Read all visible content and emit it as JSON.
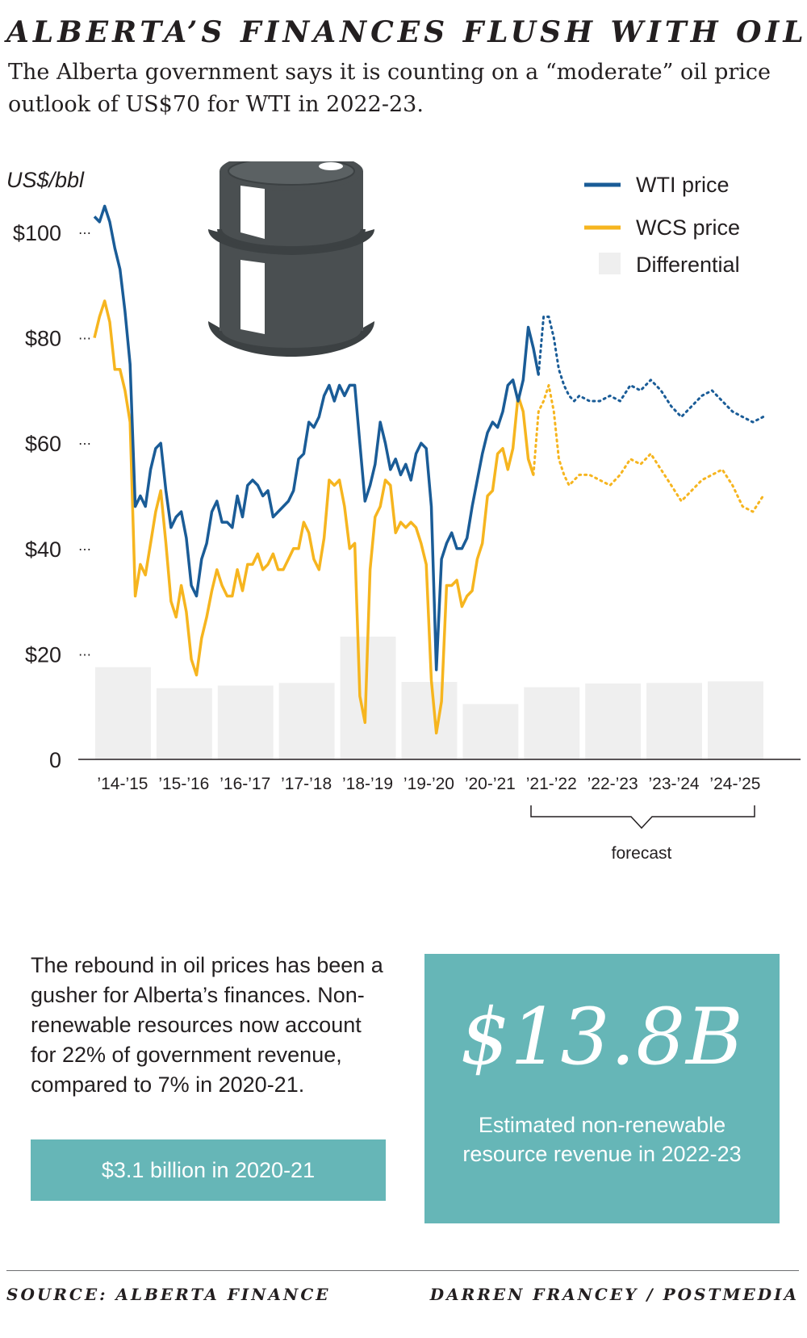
{
  "title": "ALBERTA’S FINANCES FLUSH WITH OIL",
  "subtitle": "The Alberta government says it is counting on a “moderate” oil price outlook of US$70 for WTI in 2022-23.",
  "icon": "oil-barrel-icon",
  "colors": {
    "wti": "#1a5c97",
    "wcs": "#f6b51f",
    "differential": "#efefef",
    "box": "#66b6b7",
    "barrel": "#4a4f51"
  },
  "chart_data": {
    "type": "line",
    "ylabel": "US$/bbl",
    "ylim": [
      0,
      100
    ],
    "yticks": [
      {
        "value": 100,
        "label": "$100"
      },
      {
        "value": 80,
        "label": "$80"
      },
      {
        "value": 60,
        "label": "$60"
      },
      {
        "value": 40,
        "label": "$40"
      },
      {
        "value": 20,
        "label": "$20"
      },
      {
        "value": 0,
        "label": "0"
      }
    ],
    "categories": [
      "’14-’15",
      "’15-’16",
      "’16-’17",
      "’17-’18",
      "’18-’19",
      "’19-’20",
      "’20-’21",
      "’21-’22",
      "’22-’23",
      "’23-’24",
      "’24-’25"
    ],
    "forecast_label": "forecast",
    "legend": [
      "WTI price",
      "WCS price",
      "Differential"
    ],
    "differential": [
      17.5,
      13.5,
      14,
      14.5,
      23.3,
      14.7,
      10.5,
      13.7,
      14.4,
      14.5,
      14.8
    ],
    "series": [
      {
        "name": "WTI price",
        "x": [
          0,
          0.083,
          0.167,
          0.25,
          0.333,
          0.417,
          0.5,
          0.583,
          0.667,
          0.75,
          0.833,
          0.917,
          1,
          1.083,
          1.167,
          1.25,
          1.333,
          1.417,
          1.5,
          1.583,
          1.667,
          1.75,
          1.833,
          1.917,
          2,
          2.083,
          2.167,
          2.25,
          2.333,
          2.417,
          2.5,
          2.583,
          2.667,
          2.75,
          2.833,
          2.917,
          3,
          3.083,
          3.167,
          3.25,
          3.333,
          3.417,
          3.5,
          3.583,
          3.667,
          3.75,
          3.833,
          3.917,
          4,
          4.083,
          4.167,
          4.25,
          4.333,
          4.417,
          4.5,
          4.583,
          4.667,
          4.75,
          4.833,
          4.917,
          5,
          5.083,
          5.167,
          5.25,
          5.333,
          5.417,
          5.5,
          5.583,
          5.667,
          5.75,
          5.833,
          5.917,
          6,
          6.083,
          6.167,
          6.25,
          6.333,
          6.417,
          6.5,
          6.583,
          6.667,
          6.75,
          6.833,
          6.917,
          7,
          7.083,
          7.167,
          7.25,
          7.333,
          7.417,
          7.5,
          7.583,
          7.667,
          7.75,
          7.833,
          7.917
        ],
        "values": [
          103,
          102,
          105,
          102,
          97,
          93,
          85,
          75,
          48,
          50,
          48,
          55,
          59,
          60,
          51,
          44,
          46,
          47,
          42,
          33,
          31,
          38,
          41,
          47,
          49,
          45,
          45,
          44,
          50,
          46,
          52,
          53,
          52,
          50,
          51,
          46,
          47,
          48,
          49,
          51,
          57,
          58,
          64,
          63,
          65,
          69,
          71,
          68,
          71,
          69,
          71,
          71,
          60,
          49,
          52,
          56,
          64,
          60,
          55,
          57,
          54,
          56,
          53,
          58,
          60,
          59,
          48,
          17,
          38,
          41,
          43,
          40,
          40,
          42,
          48,
          53,
          58,
          62,
          64,
          63,
          66,
          71,
          72,
          68,
          72,
          82,
          78,
          73,
          84,
          84,
          80,
          74,
          71,
          69,
          68,
          69
        ],
        "forecast_from_index": 88
      },
      {
        "name": "WCS price",
        "x": [
          0,
          0.083,
          0.167,
          0.25,
          0.333,
          0.417,
          0.5,
          0.583,
          0.667,
          0.75,
          0.833,
          0.917,
          1,
          1.083,
          1.167,
          1.25,
          1.333,
          1.417,
          1.5,
          1.583,
          1.667,
          1.75,
          1.833,
          1.917,
          2,
          2.083,
          2.167,
          2.25,
          2.333,
          2.417,
          2.5,
          2.583,
          2.667,
          2.75,
          2.833,
          2.917,
          3,
          3.083,
          3.167,
          3.25,
          3.333,
          3.417,
          3.5,
          3.583,
          3.667,
          3.75,
          3.833,
          3.917,
          4,
          4.083,
          4.167,
          4.25,
          4.333,
          4.417,
          4.5,
          4.583,
          4.667,
          4.75,
          4.833,
          4.917,
          5,
          5.083,
          5.167,
          5.25,
          5.333,
          5.417,
          5.5,
          5.583,
          5.667,
          5.75,
          5.833,
          5.917,
          6,
          6.083,
          6.167,
          6.25,
          6.333,
          6.417,
          6.5,
          6.583,
          6.667,
          6.75,
          6.833,
          6.917,
          7,
          7.083,
          7.167,
          7.25,
          7.333,
          7.417,
          7.5,
          7.583,
          7.667,
          7.75,
          7.833,
          7.917
        ],
        "values": [
          80,
          84,
          87,
          83,
          74,
          74,
          70,
          64,
          31,
          37,
          35,
          41,
          47,
          51,
          41,
          30,
          27,
          33,
          28,
          19,
          16,
          23,
          27,
          32,
          36,
          33,
          31,
          31,
          36,
          32,
          37,
          37,
          39,
          36,
          37,
          39,
          36,
          36,
          38,
          40,
          40,
          45,
          43,
          38,
          36,
          42,
          53,
          52,
          53,
          48,
          40,
          41,
          12,
          7,
          36,
          46,
          48,
          53,
          52,
          43,
          45,
          44,
          45,
          44,
          41,
          37,
          15,
          5,
          11,
          33,
          33,
          34,
          29,
          31,
          32,
          38,
          41,
          50,
          51,
          58,
          59,
          55,
          59,
          69,
          66,
          57,
          54,
          66,
          68,
          71,
          66,
          57,
          54,
          52,
          53,
          54
        ],
        "forecast_from_index": 87
      }
    ],
    "forecast_series": [
      {
        "name": "WTI price",
        "x": [
          7.917,
          8.083,
          8.25,
          8.417,
          8.583,
          8.75,
          8.917,
          9.083,
          9.25,
          9.417,
          9.583,
          9.75,
          9.917,
          10.083,
          10.25,
          10.417,
          10.583,
          10.75,
          10.917
        ],
        "values": [
          69,
          68,
          68,
          69,
          68,
          71,
          70,
          72,
          70,
          67,
          65,
          67,
          69,
          70,
          68,
          66,
          65,
          64,
          65
        ]
      },
      {
        "name": "WCS price",
        "x": [
          7.917,
          8.083,
          8.25,
          8.417,
          8.583,
          8.75,
          8.917,
          9.083,
          9.25,
          9.417,
          9.583,
          9.75,
          9.917,
          10.083,
          10.25,
          10.417,
          10.583,
          10.75,
          10.917
        ],
        "values": [
          54,
          54,
          53,
          52,
          54,
          57,
          56,
          58,
          55,
          52,
          49,
          51,
          53,
          54,
          55,
          52,
          48,
          47,
          50
        ]
      }
    ]
  },
  "body_text": "The rebound in oil prices has been a gusher for Alberta’s finances. Non-renewable resources now account for 22% of government revenue, compared to 7% in 2020-21.",
  "small_box_text": "$3.1 billion in 2020-21",
  "big_box": {
    "value": "$13.8B",
    "caption": "Estimated non-renewable resource revenue in 2022-23"
  },
  "source": "SOURCE: ALBERTA FINANCE",
  "credit": "DARREN FRANCEY / POSTMEDIA"
}
